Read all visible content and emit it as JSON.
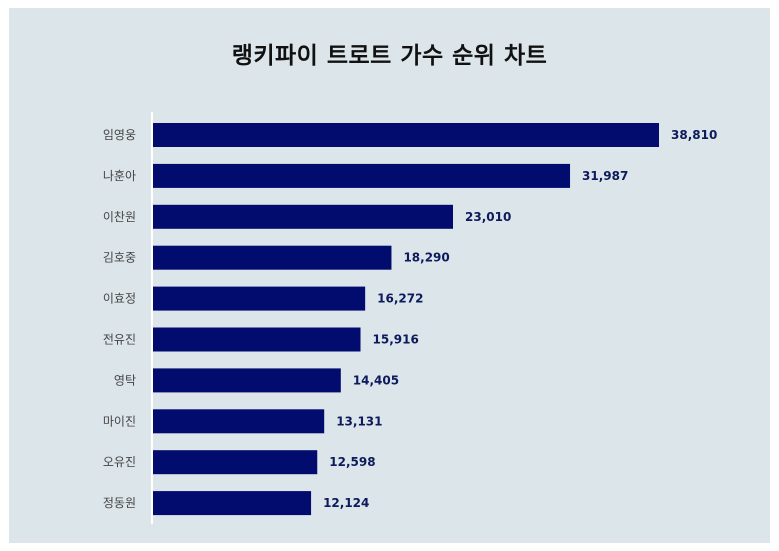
{
  "chart_data": {
    "type": "bar",
    "orientation": "horizontal",
    "title": "랭키파이 트로트 가수 순위 차트",
    "categories": [
      "임영웅",
      "나훈아",
      "이찬원",
      "김호중",
      "이효정",
      "전유진",
      "영탁",
      "마이진",
      "오유진",
      "정동원"
    ],
    "values": [
      38810,
      31987,
      23010,
      18290,
      16272,
      15916,
      14405,
      13131,
      12598,
      12124
    ],
    "value_labels": [
      "38,810",
      "31,987",
      "23,010",
      "18,290",
      "16,272",
      "15,916",
      "14,405",
      "13,131",
      "12,598",
      "12,124"
    ],
    "bar_color": "#020c6e",
    "background_color": "#dce6ea",
    "xlabel": "",
    "ylabel": "",
    "grid": false,
    "legend": "none"
  }
}
